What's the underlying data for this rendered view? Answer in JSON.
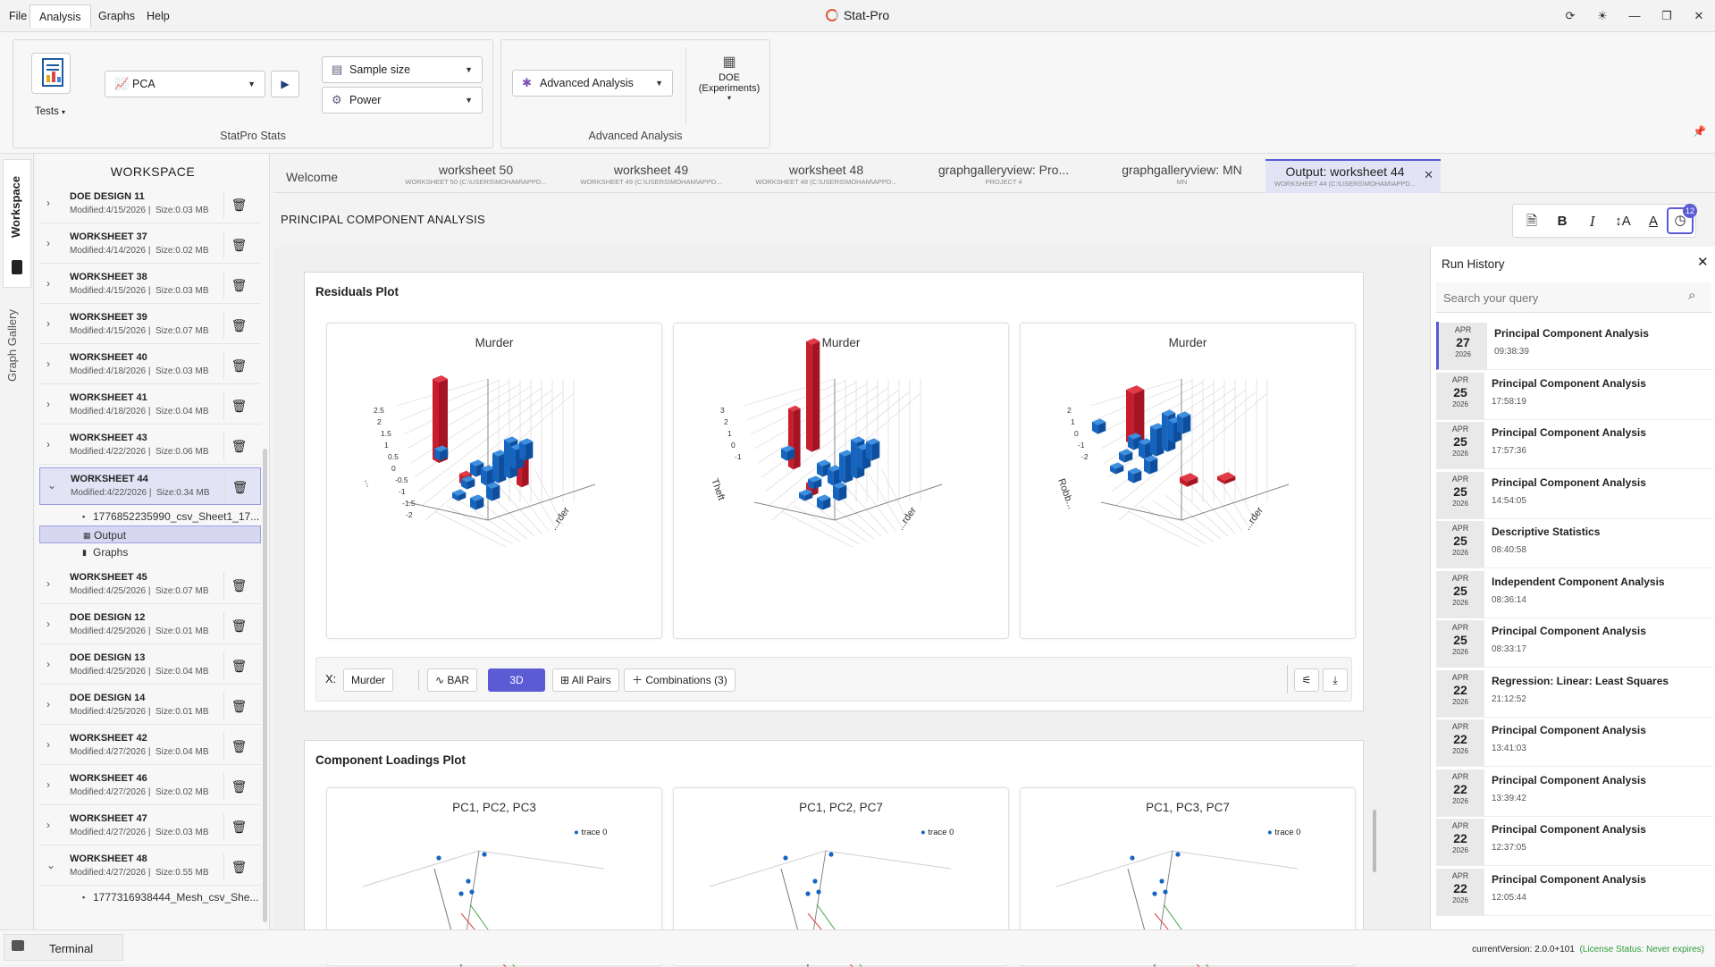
{
  "menu": {
    "file": "File",
    "analysis": "Analysis",
    "graphs": "Graphs",
    "help": "Help"
  },
  "app": {
    "title": "Stat-Pro"
  },
  "ribbon": {
    "tests_label": "Tests",
    "test_combo": "PCA",
    "sample_size": "Sample size",
    "power": "Power",
    "group1_label": "StatPro Stats",
    "advanced_combo": "Advanced Analysis",
    "doe_label_1": "DOE",
    "doe_label_2": "(Experiments)",
    "group2_label": "Advanced Analysis"
  },
  "rail": {
    "workspace": "Workspace",
    "gallery": "Graph Gallery"
  },
  "workspace": {
    "title": "WORKSPACE",
    "items": [
      {
        "name": "DOE DESIGN 11",
        "modified": "Modified:4/15/2026",
        "size": "Size:0.03 MB"
      },
      {
        "name": "WORKSHEET 37",
        "modified": "Modified:4/14/2026",
        "size": "Size:0.02 MB"
      },
      {
        "name": "WORKSHEET 38",
        "modified": "Modified:4/15/2026",
        "size": "Size:0.03 MB"
      },
      {
        "name": "WORKSHEET 39",
        "modified": "Modified:4/15/2026",
        "size": "Size:0.07 MB"
      },
      {
        "name": "WORKSHEET 40",
        "modified": "Modified:4/18/2026",
        "size": "Size:0.03 MB"
      },
      {
        "name": "WORKSHEET 41",
        "modified": "Modified:4/18/2026",
        "size": "Size:0.04 MB"
      },
      {
        "name": "WORKSHEET 43",
        "modified": "Modified:4/22/2026",
        "size": "Size:0.06 MB"
      },
      {
        "name": "WORKSHEET 44",
        "modified": "Modified:4/22/2026",
        "size": "Size:0.34 MB"
      },
      {
        "name": "WORKSHEET 45",
        "modified": "Modified:4/25/2026",
        "size": "Size:0.07 MB"
      },
      {
        "name": "DOE DESIGN 12",
        "modified": "Modified:4/25/2026",
        "size": "Size:0.01 MB"
      },
      {
        "name": "DOE DESIGN 13",
        "modified": "Modified:4/25/2026",
        "size": "Size:0.04 MB"
      },
      {
        "name": "DOE DESIGN 14",
        "modified": "Modified:4/25/2026",
        "size": "Size:0.01 MB"
      },
      {
        "name": "WORKSHEET 42",
        "modified": "Modified:4/27/2026",
        "size": "Size:0.04 MB"
      },
      {
        "name": "WORKSHEET 46",
        "modified": "Modified:4/27/2026",
        "size": "Size:0.02 MB"
      },
      {
        "name": "WORKSHEET 47",
        "modified": "Modified:4/27/2026",
        "size": "Size:0.03 MB"
      },
      {
        "name": "WORKSHEET 48",
        "modified": "Modified:4/27/2026",
        "size": "Size:0.55 MB"
      }
    ],
    "ws44_children": {
      "file": "1776852235990_csv_Sheet1_17...",
      "output": "Output",
      "graphs": "Graphs"
    },
    "ws48_child": "1777316938444_Mesh_csv_She..."
  },
  "tabs": [
    {
      "title": "Welcome",
      "sub": ""
    },
    {
      "title": "worksheet 50",
      "sub": "WORKSHEET 50 (C:\\USERS\\MOHAM\\APPD..."
    },
    {
      "title": "worksheet 49",
      "sub": "WORKSHEET 49 (C:\\USERS\\MOHAM\\APPD..."
    },
    {
      "title": "worksheet 48",
      "sub": "WORKSHEET 48 (C:\\USERS\\MOHAM\\APPD..."
    },
    {
      "title": "graphgalleryview: Pro...",
      "sub": "PROJECT 4"
    },
    {
      "title": "graphgalleryview: MN",
      "sub": "MN"
    },
    {
      "title": "Output: worksheet 44",
      "sub": "WORKSHEET 44 (C:\\USERS\\MOHAM\\APPD..."
    }
  ],
  "content": {
    "title": "PRINCIPAL COMPONENT ANALYSIS",
    "badge": "12"
  },
  "residuals": {
    "title": "Residuals Plot",
    "plots": [
      {
        "title": "Murder",
        "z_ticks": [
          "2.5",
          "2",
          "1.5",
          "1",
          "0.5",
          "0",
          "-0.5",
          "-1",
          "-1.5",
          "-2"
        ],
        "y_label": "...",
        "x_label": "...rder"
      },
      {
        "title": "Murder",
        "z_ticks": [
          "3",
          "2",
          "1",
          "0",
          "-1"
        ],
        "y_label": "Theft",
        "x_label": "...rder"
      },
      {
        "title": "Murder",
        "z_ticks": [
          "2",
          "1",
          "0",
          "-1",
          "-2"
        ],
        "y_label": "Robb...",
        "x_label": "...rder"
      }
    ],
    "toolbar": {
      "x_label": "X:",
      "x_value": "Murder",
      "bar": "BAR",
      "threed": "3D",
      "all_pairs": "All Pairs",
      "combinations": "Combinations (3)"
    }
  },
  "loadings": {
    "title": "Component Loadings Plot",
    "plots": [
      {
        "title": "PC1, PC2, PC3",
        "legend": "trace 0"
      },
      {
        "title": "PC1, PC2, PC7",
        "legend": "trace 0"
      },
      {
        "title": "PC1, PC3, PC7",
        "legend": "trace 0"
      }
    ]
  },
  "history": {
    "title": "Run History",
    "search_placeholder": "Search your query",
    "items": [
      {
        "month": "APR",
        "day": "27",
        "year": "2026",
        "name": "Principal Component Analysis",
        "time": "09:38:39"
      },
      {
        "month": "APR",
        "day": "25",
        "year": "2026",
        "name": "Principal Component Analysis",
        "time": "17:58:19"
      },
      {
        "month": "APR",
        "day": "25",
        "year": "2026",
        "name": "Principal Component Analysis",
        "time": "17:57:36"
      },
      {
        "month": "APR",
        "day": "25",
        "year": "2026",
        "name": "Principal Component Analysis",
        "time": "14:54:05"
      },
      {
        "month": "APR",
        "day": "25",
        "year": "2026",
        "name": "Descriptive Statistics",
        "time": "08:40:58"
      },
      {
        "month": "APR",
        "day": "25",
        "year": "2026",
        "name": "Independent Component Analysis",
        "time": "08:36:14"
      },
      {
        "month": "APR",
        "day": "25",
        "year": "2026",
        "name": "Principal Component Analysis",
        "time": "08:33:17"
      },
      {
        "month": "APR",
        "day": "22",
        "year": "2026",
        "name": "Regression: Linear: Least Squares",
        "time": "21:12:52"
      },
      {
        "month": "APR",
        "day": "22",
        "year": "2026",
        "name": "Principal Component Analysis",
        "time": "13:41:03"
      },
      {
        "month": "APR",
        "day": "22",
        "year": "2026",
        "name": "Principal Component Analysis",
        "time": "13:39:42"
      },
      {
        "month": "APR",
        "day": "22",
        "year": "2026",
        "name": "Principal Component Analysis",
        "time": "12:37:05"
      },
      {
        "month": "APR",
        "day": "22",
        "year": "2026",
        "name": "Principal Component Analysis",
        "time": "12:05:44"
      }
    ]
  },
  "status": {
    "terminal": "Terminal",
    "version": "currentVersion: 2.0.0+101",
    "license": "(License Status: Never expires)"
  },
  "colors": {
    "accent": "#5b5bd6",
    "bar_red": "#d9202f",
    "bar_blue": "#1565c0",
    "license_green": "#2e9d3a"
  }
}
